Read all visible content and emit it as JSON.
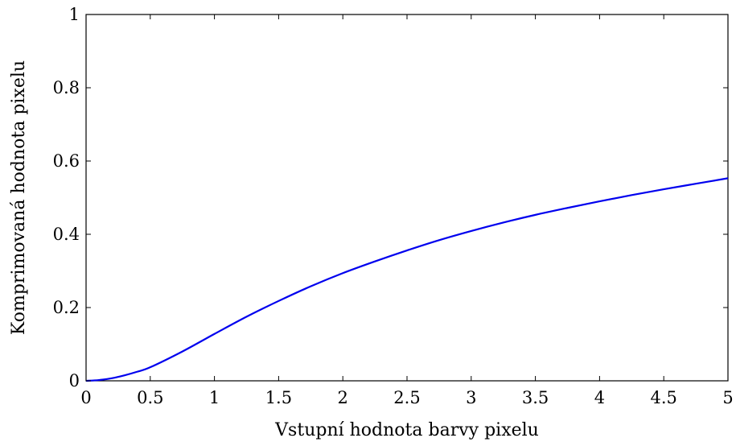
{
  "chart_data": {
    "type": "line",
    "title": "",
    "xlabel": "Vstupní hodnota barvy pixelu",
    "ylabel": "Komprimovaná hodnota pixelu",
    "xlim": [
      0,
      5
    ],
    "ylim": [
      0,
      1
    ],
    "x_ticks": [
      "0",
      "0.5",
      "1",
      "1.5",
      "2",
      "2.5",
      "3",
      "3.5",
      "4",
      "4.5",
      "5"
    ],
    "y_ticks": [
      "0",
      "0.2",
      "0.4",
      "0.6",
      "0.8",
      "1"
    ],
    "grid": false,
    "legend": "none",
    "series": [
      {
        "color": "#0000ee",
        "x": [
          0,
          0.1,
          0.2,
          0.3,
          0.4,
          0.5,
          0.75,
          1,
          1.25,
          1.5,
          1.75,
          2,
          2.25,
          2.5,
          2.75,
          3,
          3.25,
          3.5,
          3.75,
          4,
          4.25,
          4.5,
          4.75,
          5
        ],
        "y": [
          0,
          0.002,
          0.007,
          0.015,
          0.025,
          0.037,
          0.08,
          0.128,
          0.175,
          0.218,
          0.258,
          0.294,
          0.326,
          0.356,
          0.384,
          0.409,
          0.432,
          0.453,
          0.472,
          0.49,
          0.507,
          0.523,
          0.538,
          0.553
        ]
      }
    ]
  }
}
